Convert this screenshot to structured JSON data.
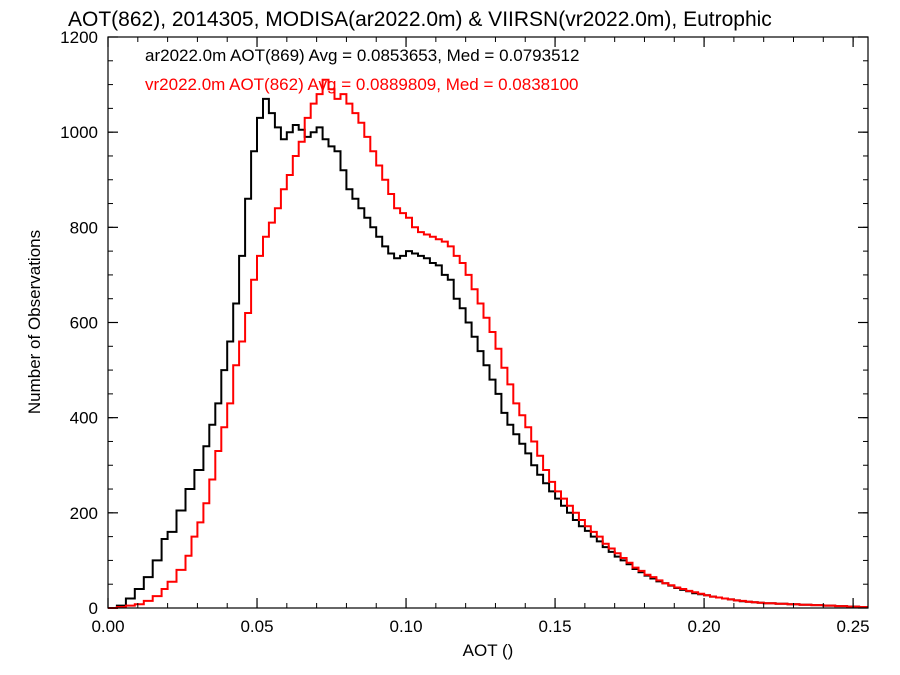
{
  "chart_data": {
    "type": "line",
    "step": true,
    "title": "AOT(862), 2014305, MODISA(ar2022.0m) & VIIRSN(vr2022.0m), Eutrophic",
    "xlabel": "AOT ()",
    "ylabel": "Number of Observations",
    "xlim": [
      0.0,
      0.255
    ],
    "ylim": [
      0,
      1200
    ],
    "xticks": [
      0.0,
      0.05,
      0.1,
      0.15,
      0.2,
      0.25
    ],
    "xtick_labels": [
      "0.00",
      "0.05",
      "0.10",
      "0.15",
      "0.20",
      "0.25"
    ],
    "yticks": [
      0,
      200,
      400,
      600,
      800,
      1000,
      1200
    ],
    "ytick_labels": [
      "0",
      "200",
      "400",
      "600",
      "800",
      "1000",
      "1200"
    ],
    "grid": false,
    "legend_placement": "top-left",
    "series": [
      {
        "name": "ar2022.0m AOT(869) Avg = 0.0853653, Med = 0.0793512",
        "color": "#000000",
        "points": [
          [
            0.0,
            0
          ],
          [
            0.003,
            5
          ],
          [
            0.006,
            20
          ],
          [
            0.009,
            40
          ],
          [
            0.012,
            65
          ],
          [
            0.015,
            100
          ],
          [
            0.018,
            145
          ],
          [
            0.02,
            160
          ],
          [
            0.023,
            205
          ],
          [
            0.026,
            250
          ],
          [
            0.029,
            290
          ],
          [
            0.032,
            340
          ],
          [
            0.034,
            385
          ],
          [
            0.036,
            430
          ],
          [
            0.038,
            500
          ],
          [
            0.04,
            560
          ],
          [
            0.042,
            640
          ],
          [
            0.044,
            740
          ],
          [
            0.046,
            860
          ],
          [
            0.048,
            960
          ],
          [
            0.05,
            1030
          ],
          [
            0.052,
            1070
          ],
          [
            0.054,
            1040
          ],
          [
            0.056,
            1010
          ],
          [
            0.058,
            985
          ],
          [
            0.06,
            1000
          ],
          [
            0.062,
            1015
          ],
          [
            0.064,
            1005
          ],
          [
            0.066,
            990
          ],
          [
            0.068,
            1000
          ],
          [
            0.07,
            1010
          ],
          [
            0.072,
            985
          ],
          [
            0.074,
            970
          ],
          [
            0.076,
            960
          ],
          [
            0.078,
            920
          ],
          [
            0.08,
            880
          ],
          [
            0.082,
            860
          ],
          [
            0.084,
            840
          ],
          [
            0.086,
            820
          ],
          [
            0.088,
            800
          ],
          [
            0.09,
            780
          ],
          [
            0.092,
            760
          ],
          [
            0.094,
            745
          ],
          [
            0.096,
            735
          ],
          [
            0.098,
            740
          ],
          [
            0.1,
            750
          ],
          [
            0.102,
            745
          ],
          [
            0.104,
            740
          ],
          [
            0.106,
            735
          ],
          [
            0.108,
            725
          ],
          [
            0.11,
            720
          ],
          [
            0.112,
            700
          ],
          [
            0.114,
            690
          ],
          [
            0.116,
            650
          ],
          [
            0.118,
            630
          ],
          [
            0.12,
            600
          ],
          [
            0.122,
            570
          ],
          [
            0.124,
            540
          ],
          [
            0.126,
            510
          ],
          [
            0.128,
            480
          ],
          [
            0.13,
            450
          ],
          [
            0.132,
            410
          ],
          [
            0.134,
            385
          ],
          [
            0.136,
            365
          ],
          [
            0.138,
            345
          ],
          [
            0.14,
            325
          ],
          [
            0.142,
            300
          ],
          [
            0.144,
            280
          ],
          [
            0.146,
            262
          ],
          [
            0.148,
            245
          ],
          [
            0.15,
            230
          ],
          [
            0.152,
            215
          ],
          [
            0.154,
            200
          ],
          [
            0.156,
            185
          ],
          [
            0.158,
            172
          ],
          [
            0.16,
            162
          ],
          [
            0.162,
            150
          ],
          [
            0.164,
            140
          ],
          [
            0.166,
            128
          ],
          [
            0.168,
            118
          ],
          [
            0.17,
            108
          ],
          [
            0.172,
            100
          ],
          [
            0.174,
            92
          ],
          [
            0.176,
            82
          ],
          [
            0.178,
            75
          ],
          [
            0.18,
            68
          ],
          [
            0.182,
            62
          ],
          [
            0.184,
            56
          ],
          [
            0.186,
            52
          ],
          [
            0.188,
            47
          ],
          [
            0.19,
            42
          ],
          [
            0.192,
            38
          ],
          [
            0.194,
            35
          ],
          [
            0.196,
            31
          ],
          [
            0.198,
            29
          ],
          [
            0.2,
            27
          ],
          [
            0.202,
            24
          ],
          [
            0.204,
            22
          ],
          [
            0.206,
            20
          ],
          [
            0.208,
            18
          ],
          [
            0.21,
            16
          ],
          [
            0.212,
            14
          ],
          [
            0.214,
            13
          ],
          [
            0.216,
            12
          ],
          [
            0.218,
            11
          ],
          [
            0.22,
            10
          ],
          [
            0.224,
            9
          ],
          [
            0.228,
            8
          ],
          [
            0.232,
            7
          ],
          [
            0.236,
            6
          ],
          [
            0.24,
            5
          ],
          [
            0.244,
            4
          ],
          [
            0.248,
            3
          ],
          [
            0.252,
            2
          ],
          [
            0.255,
            2
          ]
        ]
      },
      {
        "name": "vr2022.0m AOT(862) Avg = 0.0889809, Med = 0.0838100",
        "color": "#ff0000",
        "points": [
          [
            0.0,
            0
          ],
          [
            0.003,
            2
          ],
          [
            0.006,
            5
          ],
          [
            0.009,
            8
          ],
          [
            0.012,
            15
          ],
          [
            0.015,
            25
          ],
          [
            0.018,
            40
          ],
          [
            0.02,
            55
          ],
          [
            0.023,
            80
          ],
          [
            0.026,
            110
          ],
          [
            0.028,
            150
          ],
          [
            0.03,
            180
          ],
          [
            0.032,
            220
          ],
          [
            0.034,
            270
          ],
          [
            0.036,
            330
          ],
          [
            0.038,
            380
          ],
          [
            0.04,
            430
          ],
          [
            0.042,
            510
          ],
          [
            0.044,
            560
          ],
          [
            0.046,
            620
          ],
          [
            0.048,
            690
          ],
          [
            0.05,
            740
          ],
          [
            0.052,
            780
          ],
          [
            0.054,
            810
          ],
          [
            0.056,
            840
          ],
          [
            0.058,
            880
          ],
          [
            0.06,
            910
          ],
          [
            0.062,
            950
          ],
          [
            0.064,
            980
          ],
          [
            0.066,
            1030
          ],
          [
            0.068,
            1060
          ],
          [
            0.07,
            1080
          ],
          [
            0.072,
            1110
          ],
          [
            0.074,
            1090
          ],
          [
            0.076,
            1070
          ],
          [
            0.078,
            1080
          ],
          [
            0.08,
            1060
          ],
          [
            0.082,
            1040
          ],
          [
            0.084,
            1020
          ],
          [
            0.086,
            990
          ],
          [
            0.088,
            960
          ],
          [
            0.09,
            930
          ],
          [
            0.092,
            900
          ],
          [
            0.094,
            870
          ],
          [
            0.096,
            840
          ],
          [
            0.098,
            830
          ],
          [
            0.1,
            820
          ],
          [
            0.102,
            800
          ],
          [
            0.104,
            790
          ],
          [
            0.106,
            785
          ],
          [
            0.108,
            780
          ],
          [
            0.11,
            775
          ],
          [
            0.112,
            770
          ],
          [
            0.114,
            760
          ],
          [
            0.116,
            740
          ],
          [
            0.118,
            725
          ],
          [
            0.12,
            700
          ],
          [
            0.122,
            670
          ],
          [
            0.124,
            640
          ],
          [
            0.126,
            610
          ],
          [
            0.128,
            580
          ],
          [
            0.13,
            545
          ],
          [
            0.132,
            505
          ],
          [
            0.134,
            470
          ],
          [
            0.136,
            430
          ],
          [
            0.138,
            405
          ],
          [
            0.14,
            380
          ],
          [
            0.142,
            350
          ],
          [
            0.144,
            320
          ],
          [
            0.146,
            290
          ],
          [
            0.148,
            265
          ],
          [
            0.15,
            245
          ],
          [
            0.152,
            230
          ],
          [
            0.154,
            215
          ],
          [
            0.156,
            200
          ],
          [
            0.158,
            185
          ],
          [
            0.16,
            172
          ],
          [
            0.162,
            160
          ],
          [
            0.164,
            150
          ],
          [
            0.166,
            135
          ],
          [
            0.168,
            125
          ],
          [
            0.17,
            115
          ],
          [
            0.172,
            105
          ],
          [
            0.174,
            95
          ],
          [
            0.176,
            85
          ],
          [
            0.178,
            78
          ],
          [
            0.18,
            70
          ],
          [
            0.182,
            65
          ],
          [
            0.184,
            58
          ],
          [
            0.186,
            52
          ],
          [
            0.188,
            48
          ],
          [
            0.19,
            43
          ],
          [
            0.192,
            40
          ],
          [
            0.194,
            36
          ],
          [
            0.196,
            33
          ],
          [
            0.198,
            30
          ],
          [
            0.2,
            27
          ],
          [
            0.202,
            24
          ],
          [
            0.204,
            22
          ],
          [
            0.206,
            20
          ],
          [
            0.208,
            18
          ],
          [
            0.21,
            16
          ],
          [
            0.212,
            15
          ],
          [
            0.214,
            13
          ],
          [
            0.216,
            12
          ],
          [
            0.218,
            11
          ],
          [
            0.22,
            10
          ],
          [
            0.224,
            9
          ],
          [
            0.228,
            8
          ],
          [
            0.232,
            7
          ],
          [
            0.236,
            6
          ],
          [
            0.24,
            5
          ],
          [
            0.244,
            4
          ],
          [
            0.248,
            3
          ],
          [
            0.252,
            2
          ],
          [
            0.255,
            2
          ]
        ]
      }
    ]
  }
}
